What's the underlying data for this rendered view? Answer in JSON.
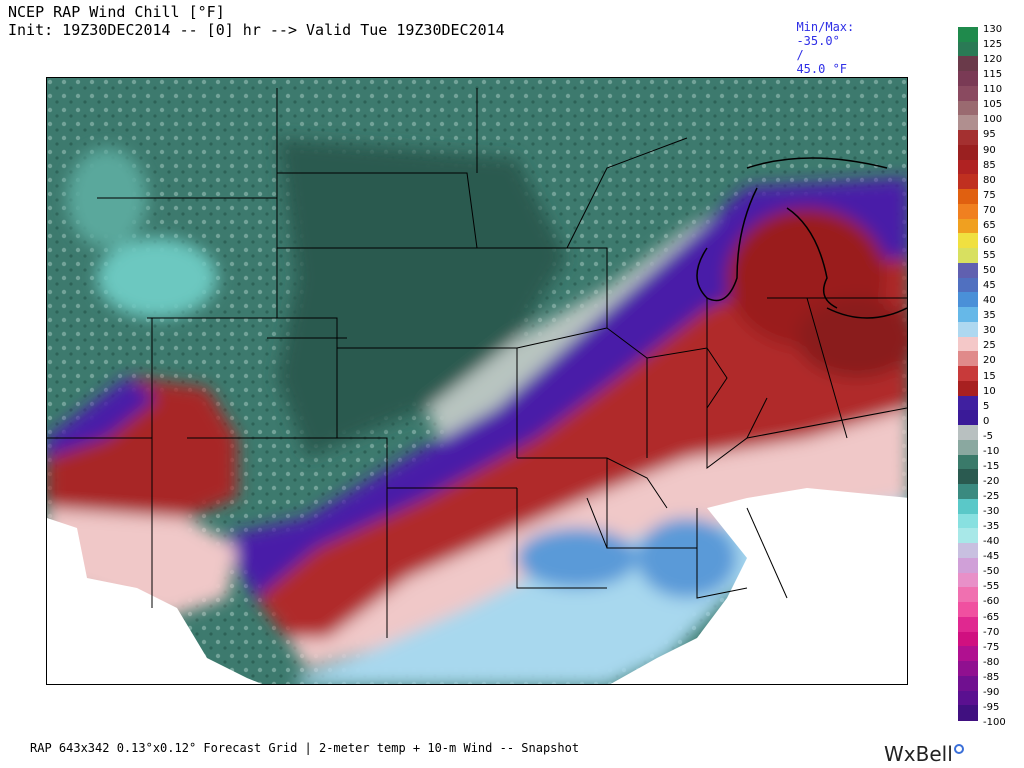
{
  "header": {
    "title_line1": "NCEP RAP Wind Chill [°F]",
    "title_line2": "Init: 19Z30DEC2014 -- [0] hr --> Valid Tue 19Z30DEC2014",
    "minmax_label": "Min/Max:",
    "min_value": "-35.0°",
    "separator": "/",
    "max_value": "45.0 °F"
  },
  "footer": {
    "grid_info": "RAP 643x342 0.13°x0.12° Forecast Grid | 2-meter temp + 10-m Wind -- Snapshot",
    "brand": "WxBell"
  },
  "legend": {
    "labels": [
      "130",
      "125",
      "120",
      "115",
      "110",
      "105",
      "100",
      "95",
      "90",
      "85",
      "80",
      "75",
      "70",
      "65",
      "60",
      "55",
      "50",
      "45",
      "40",
      "35",
      "30",
      "25",
      "20",
      "15",
      "10",
      "5",
      "0",
      "-5",
      "-10",
      "-15",
      "-20",
      "-25",
      "-30",
      "-35",
      "-40",
      "-45",
      "-50",
      "-55",
      "-60",
      "-65",
      "-70",
      "-75",
      "-80",
      "-85",
      "-90",
      "-95",
      "-100"
    ],
    "colors": [
      "#1f8a4c",
      "#2a7a55",
      "#6a3a4a",
      "#7a3a55",
      "#8a4a60",
      "#9a6a70",
      "#b08f8f",
      "#a43030",
      "#9a2020",
      "#b02222",
      "#c03020",
      "#e06010",
      "#f08020",
      "#f0a020",
      "#f0e040",
      "#d8e060",
      "#6060b0",
      "#5070c0",
      "#4a90d8",
      "#66b8e8",
      "#aed8f0",
      "#f4c8c8",
      "#e08a8a",
      "#c83a3a",
      "#a82020",
      "#4020a0",
      "#3a1a98",
      "#b8c0c0",
      "#8aa8a0",
      "#3a7a6a",
      "#2a5a50",
      "#3a8a80",
      "#5ac8c8",
      "#88e0e0",
      "#a8e8e8",
      "#c8c0e0",
      "#d0a0d8",
      "#e890c8",
      "#f070b0",
      "#f050a0",
      "#e02890",
      "#d01080",
      "#b01090",
      "#901090",
      "#701090",
      "#5a1090",
      "#401080"
    ]
  },
  "map": {
    "name": "US wind chill map"
  }
}
